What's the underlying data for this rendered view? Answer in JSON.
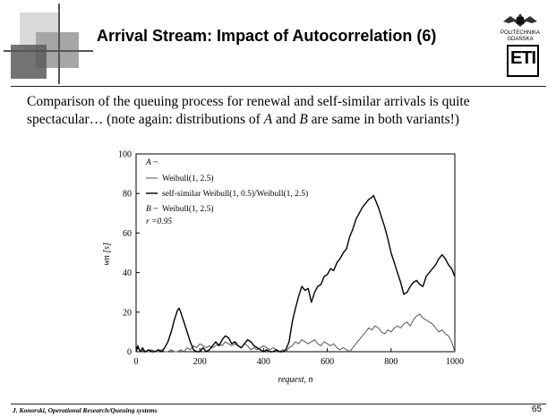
{
  "slide": {
    "title": "Arrival Stream: Impact of Autocorrelation (6)",
    "intro_line1": "Comparison of the queuing process for renewal and self-similar arrivals is quite",
    "intro_line2_a": "spectacular… (note again: distributions of ",
    "intro_A": "A",
    "intro_and": " and ",
    "intro_B": "B",
    "intro_line2_b": " are same in both variants!)",
    "logo_line1": "POLITECHNIKA",
    "logo_line2": "GDAŃSKA",
    "logo_letters": "ETI",
    "author": "J. Konorski, Operational Research/Queuing systems",
    "page_number": "65"
  },
  "colors": {
    "renewal_series": "#555555",
    "self_similar_series": "#000000",
    "deco_light": "#d9d9d9",
    "deco_mid": "#a6a6a6",
    "deco_dark": "#5a5a5a"
  },
  "chart_data": {
    "type": "line",
    "xlabel": "request, n",
    "ylabel": "wn [s]",
    "xlim": [
      0,
      1000
    ],
    "ylim": [
      0,
      100
    ],
    "xticks": [
      0,
      200,
      400,
      600,
      800,
      1000
    ],
    "yticks": [
      0,
      20,
      40,
      60,
      80,
      100
    ],
    "grid": false,
    "legend": {
      "placement": "top-left",
      "heading": "A ~",
      "entries": [
        "Weibull(1, 2.5)",
        "self-similar Weibull(1, 0.5)/Weibull(1, 2.5)"
      ],
      "service_label": "B ~",
      "service_value": "Weibull(1, 2.5)",
      "corr_label": "r =0.95"
    },
    "series": [
      {
        "name": "Weibull(1, 2.5)",
        "x": [
          0,
          5,
          10,
          15,
          20,
          25,
          30,
          40,
          50,
          60,
          70,
          80,
          90,
          100,
          110,
          120,
          130,
          140,
          150,
          160,
          170,
          180,
          190,
          200,
          210,
          220,
          230,
          240,
          250,
          260,
          270,
          280,
          290,
          300,
          310,
          320,
          330,
          340,
          350,
          360,
          370,
          380,
          390,
          400,
          410,
          420,
          430,
          440,
          450,
          460,
          470,
          480,
          490,
          500,
          510,
          520,
          530,
          540,
          550,
          560,
          570,
          580,
          590,
          600,
          610,
          620,
          630,
          640,
          650,
          660,
          670,
          680,
          690,
          700,
          710,
          720,
          730,
          740,
          750,
          760,
          770,
          780,
          790,
          800,
          810,
          820,
          830,
          840,
          850,
          860,
          870,
          880,
          890,
          900,
          910,
          920,
          930,
          940,
          950,
          960,
          970,
          980,
          990,
          1000
        ],
        "values": [
          0,
          2,
          1,
          0,
          2,
          1,
          0,
          0,
          1,
          0,
          0,
          1,
          0,
          0,
          1,
          0,
          0,
          1,
          0,
          2,
          1,
          3,
          2,
          4,
          3,
          2,
          3,
          2,
          3,
          4,
          3,
          5,
          4,
          3,
          4,
          3,
          2,
          4,
          3,
          1,
          2,
          1,
          2,
          3,
          2,
          1,
          2,
          1,
          0,
          1,
          0,
          2,
          3,
          5,
          4,
          6,
          5,
          4,
          5,
          6,
          4,
          3,
          5,
          4,
          3,
          4,
          2,
          1,
          2,
          1,
          0,
          2,
          4,
          6,
          8,
          10,
          12,
          11,
          13,
          12,
          10,
          9,
          11,
          10,
          12,
          13,
          12,
          14,
          15,
          13,
          16,
          18,
          19,
          17,
          16,
          15,
          14,
          12,
          10,
          11,
          9,
          8,
          5,
          0
        ]
      },
      {
        "name": "self-similar Weibull(1, 0.5)/Weibull(1, 2.5)",
        "x": [
          0,
          5,
          10,
          15,
          20,
          25,
          30,
          40,
          50,
          60,
          70,
          80,
          90,
          100,
          110,
          120,
          130,
          135,
          140,
          150,
          160,
          170,
          180,
          190,
          200,
          210,
          220,
          230,
          240,
          250,
          260,
          270,
          280,
          290,
          300,
          310,
          320,
          330,
          340,
          350,
          360,
          370,
          380,
          390,
          400,
          410,
          420,
          430,
          440,
          450,
          460,
          470,
          480,
          490,
          500,
          510,
          520,
          530,
          540,
          550,
          560,
          570,
          580,
          590,
          600,
          610,
          620,
          630,
          640,
          650,
          660,
          670,
          680,
          690,
          700,
          710,
          720,
          730,
          740,
          745,
          750,
          760,
          770,
          780,
          790,
          800,
          810,
          820,
          830,
          840,
          850,
          860,
          870,
          880,
          890,
          900,
          910,
          920,
          930,
          940,
          950,
          960,
          970,
          980,
          990,
          1000
        ],
        "values": [
          0,
          3,
          1,
          0,
          2,
          0,
          0,
          1,
          0,
          0,
          1,
          0,
          2,
          5,
          10,
          16,
          21,
          22,
          20,
          15,
          10,
          5,
          1,
          0,
          0,
          2,
          0,
          1,
          3,
          5,
          3,
          6,
          8,
          7,
          4,
          5,
          3,
          2,
          4,
          6,
          5,
          3,
          2,
          1,
          0,
          1,
          0,
          0,
          1,
          0,
          0,
          1,
          5,
          15,
          22,
          28,
          33,
          31,
          32,
          25,
          30,
          33,
          34,
          38,
          39,
          42,
          41,
          45,
          47,
          50,
          52,
          58,
          62,
          67,
          70,
          73,
          75,
          77,
          78,
          79,
          77,
          73,
          68,
          63,
          57,
          50,
          45,
          40,
          35,
          29,
          30,
          33,
          35,
          36,
          34,
          33,
          38,
          40,
          42,
          44,
          47,
          49,
          47,
          44,
          42,
          38
        ]
      }
    ]
  }
}
